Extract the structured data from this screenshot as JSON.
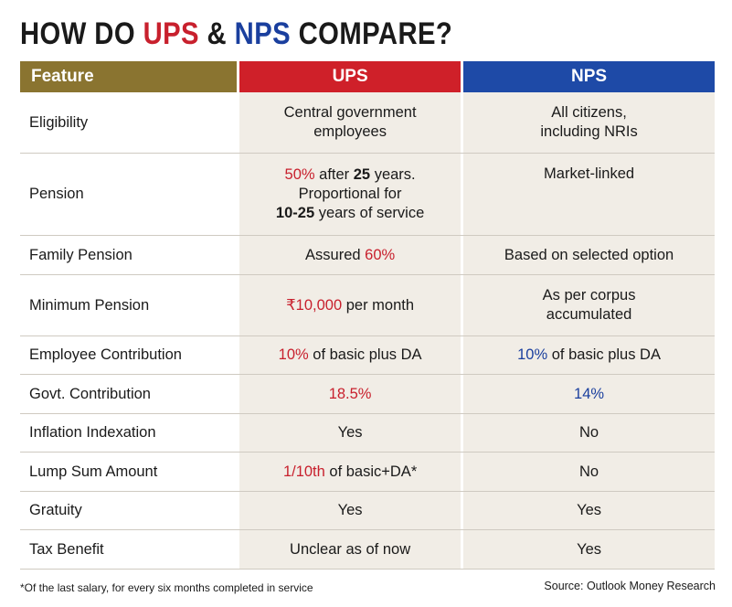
{
  "title": {
    "prefix": "HOW DO ",
    "ups": "UPS",
    "amp": " & ",
    "nps": "NPS",
    "suffix": " COMPARE?"
  },
  "header": {
    "feature": "Feature",
    "ups": "UPS",
    "nps": "NPS"
  },
  "rows": [
    {
      "feature": "Eligibility",
      "ups": {
        "l1": "Central government",
        "l2": "employees"
      },
      "nps": {
        "l1": "All citizens,",
        "l2": "including NRIs"
      }
    },
    {
      "feature": "Pension",
      "ups": {
        "a": "50%",
        "b": " after ",
        "c": "25",
        "d": " years.",
        "l2": "Proportional for",
        "l3a": "10-25",
        "l3b": " years of service"
      },
      "nps": {
        "text": "Market-linked"
      }
    },
    {
      "feature": "Family Pension",
      "ups": {
        "a": "Assured ",
        "b": "60%"
      },
      "nps": {
        "text": "Based on selected option"
      }
    },
    {
      "feature": "Minimum Pension",
      "ups": {
        "a": "₹10,000",
        "b": " per month"
      },
      "nps": {
        "l1": "As per corpus",
        "l2": "accumulated"
      }
    },
    {
      "feature": "Employee Contribution",
      "ups": {
        "a": "10%",
        "b": " of basic plus DA"
      },
      "nps": {
        "a": "10%",
        "b": " of basic plus DA"
      }
    },
    {
      "feature": "Govt. Contribution",
      "ups": {
        "text": "18.5%"
      },
      "nps": {
        "text": "14%"
      }
    },
    {
      "feature": "Inflation Indexation",
      "ups": {
        "text": "Yes"
      },
      "nps": {
        "text": "No"
      }
    },
    {
      "feature": "Lump Sum Amount",
      "ups": {
        "a": "1/10th",
        "b": " of basic+DA*"
      },
      "nps": {
        "text": "No"
      }
    },
    {
      "feature": "Gratuity",
      "ups": {
        "text": "Yes"
      },
      "nps": {
        "text": "Yes"
      }
    },
    {
      "feature": "Tax Benefit",
      "ups": {
        "text": "Unclear as of now"
      },
      "nps": {
        "text": "Yes"
      }
    }
  ],
  "footnote": "*Of the last salary, for every six months completed in service",
  "source": "Source: Outlook Money Research",
  "colors": {
    "ups_red": "#c8202d",
    "nps_blue": "#1a3f9e",
    "feature_header": "#8a7430",
    "cell_bg": "#f1ede6"
  }
}
